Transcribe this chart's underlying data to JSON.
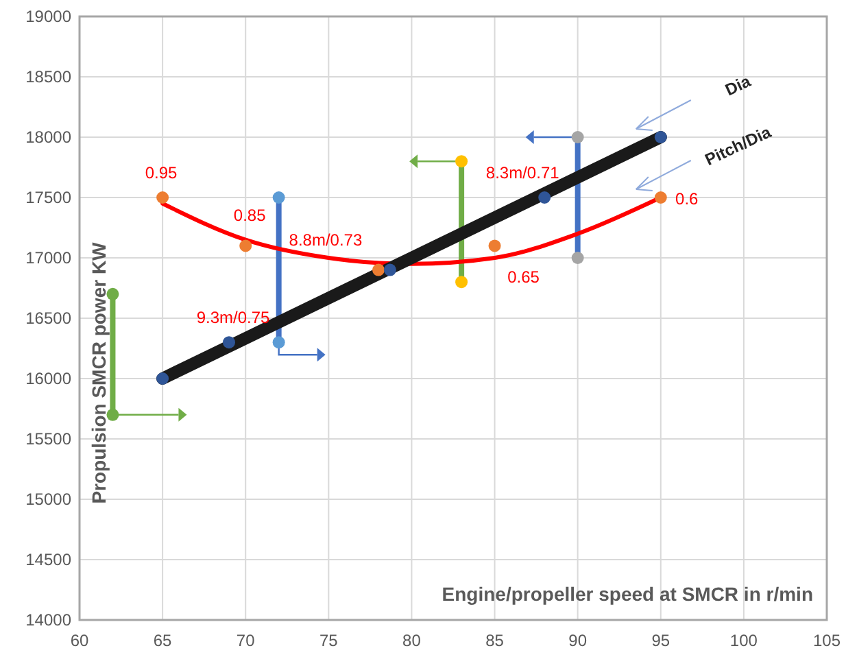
{
  "chart_data": {
    "type": "line",
    "xlabel": "Engine/propeller speed at SMCR in r/min",
    "ylabel": "Propulsion SMCR power KW",
    "xlim": [
      60,
      105
    ],
    "xticks": [
      60,
      65,
      70,
      75,
      80,
      85,
      90,
      95,
      100,
      105
    ],
    "ylim": [
      14000,
      19000
    ],
    "yticks": [
      14000,
      14500,
      15000,
      15500,
      16000,
      16500,
      17000,
      17500,
      18000,
      18500,
      19000
    ],
    "grid": true,
    "legend": false,
    "series": [
      {
        "color": "#70ad47",
        "x": [
          62,
          62
        ],
        "values": [
          15700,
          16700
        ]
      },
      {
        "color": "#4472c4",
        "x": [
          72,
          72
        ],
        "values": [
          16300,
          17500
        ]
      },
      {
        "color": "#70ad47",
        "x": [
          83,
          83
        ],
        "values": [
          16800,
          17800
        ]
      },
      {
        "color": "#4472c4",
        "x": [
          90,
          90
        ],
        "values": [
          17000,
          18000
        ]
      },
      {
        "name": "Pitch/Dia",
        "color": "#ff0000",
        "x": [
          65,
          70,
          75,
          80,
          85,
          90,
          95
        ],
        "values": [
          17450,
          17150,
          17000,
          16950,
          17000,
          17200,
          17500
        ]
      },
      {
        "name": "Dia",
        "color": "#1a1a1a",
        "x": [
          65,
          95
        ],
        "values": [
          16000,
          18000
        ]
      },
      {
        "type": "scatter",
        "color": "#ed7d31",
        "x": [
          65,
          70,
          78,
          85,
          95
        ],
        "values": [
          17500,
          17100,
          16900,
          17100,
          17500
        ]
      },
      {
        "type": "scatter",
        "color": "#2f5597",
        "x": [
          65,
          69,
          78.7,
          88,
          95
        ],
        "values": [
          16000,
          16300,
          16900,
          17500,
          18000
        ]
      },
      {
        "type": "scatter",
        "colors": [
          "#70ad47",
          "#70ad47",
          "#5b9bd5",
          "#5b9bd5",
          "#ffc000",
          "#ffc000",
          "#a5a5a5",
          "#a5a5a5"
        ],
        "x": [
          62,
          62,
          72,
          72,
          83,
          83,
          90,
          90
        ],
        "values": [
          15700,
          16700,
          16300,
          17500,
          16800,
          17800,
          17000,
          18000
        ]
      }
    ],
    "annotations": [
      {
        "text": "0.95",
        "x": 65,
        "y": 17500
      },
      {
        "text": "0.85",
        "x": 70,
        "y": 17100
      },
      {
        "text": "8.8m/0.73",
        "x": 78.7,
        "y": 16900
      },
      {
        "text": "9.3m/0.75",
        "x": 69,
        "y": 16300
      },
      {
        "text": "8.3m/0.71",
        "x": 88,
        "y": 17500
      },
      {
        "text": "0.65",
        "x": 85,
        "y": 17100
      },
      {
        "text": "0.6",
        "x": 95,
        "y": 17500
      }
    ]
  }
}
